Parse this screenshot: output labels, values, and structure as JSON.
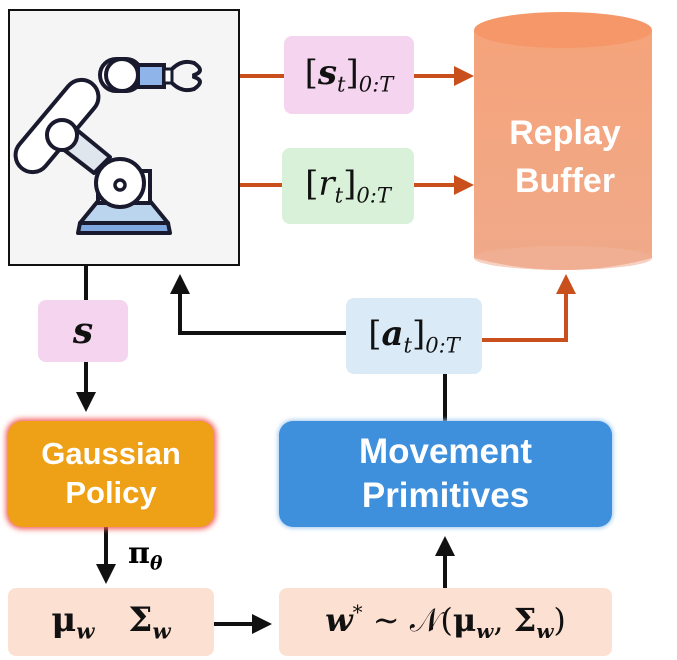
{
  "diagram": {
    "nodes": {
      "robot": {
        "icon": "robot-arm-icon"
      },
      "replay_buffer": {
        "label_line1": "Replay",
        "label_line2": "Buffer",
        "color": "#f2a47d"
      },
      "gaussian_policy": {
        "label_line1": "Gaussian",
        "label_line2": "Policy",
        "color": "#eea017"
      },
      "movement_primitives": {
        "label_line1": "Movement",
        "label_line2": "Primitives",
        "color": "#3e8fdc"
      }
    },
    "labels": {
      "states": {
        "base": "s",
        "sub": "t",
        "range": "0:T"
      },
      "rewards": {
        "base": "r",
        "sub": "t",
        "range": "0:T"
      },
      "actions": {
        "base": "a",
        "sub": "t",
        "range": "0:T"
      },
      "state": {
        "base": "s"
      },
      "policy": {
        "base": "π",
        "sub": "θ"
      },
      "params": {
        "mu": "μ",
        "sigma": "Σ",
        "sub": "w"
      },
      "sample": {
        "w": "w",
        "star": "*",
        "sim": "∼",
        "normal": "𝒩",
        "mu": "μ",
        "sigma": "Σ",
        "sub": "w"
      }
    },
    "colors": {
      "orange_arrow": "#c9501c",
      "black_arrow": "#111111"
    }
  }
}
